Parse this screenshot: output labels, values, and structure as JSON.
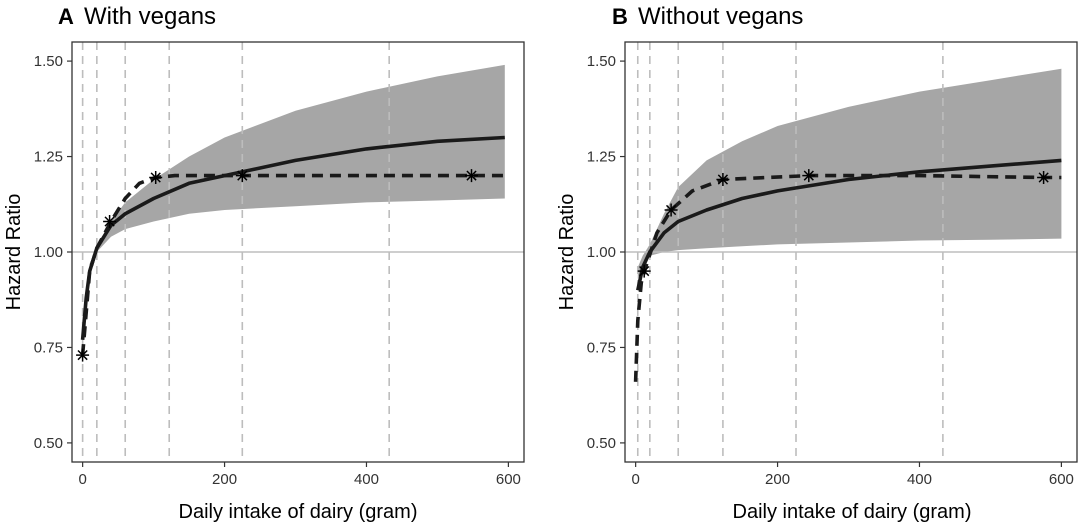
{
  "chart_data": [
    {
      "type": "line",
      "panel_letter": "A",
      "title": "With vegans",
      "xlabel": "Daily intake of dairy (gram)",
      "ylabel": "Hazard Ratio",
      "xlim": [
        -15,
        622
      ],
      "ylim": [
        0.45,
        1.55
      ],
      "xticks": [
        0,
        200,
        400,
        600
      ],
      "xtick_labels": [
        "0",
        "200",
        "400",
        "600"
      ],
      "yticks": [
        0.5,
        0.75,
        1.0,
        1.25,
        1.5
      ],
      "ytick_labels": [
        "0.50",
        "0.75",
        "1.00",
        "1.25",
        "1.50"
      ],
      "reference_line_y": 1.0,
      "quantile_lines_x": [
        0,
        20,
        60,
        122,
        225,
        432
      ],
      "band": {
        "x": [
          0,
          10,
          20,
          40,
          60,
          100,
          150,
          200,
          300,
          400,
          500,
          595
        ],
        "lower": [
          0.78,
          0.95,
          1.0,
          1.04,
          1.06,
          1.08,
          1.1,
          1.11,
          1.12,
          1.13,
          1.135,
          1.14
        ],
        "upper": [
          0.78,
          0.97,
          1.01,
          1.08,
          1.13,
          1.19,
          1.25,
          1.3,
          1.37,
          1.42,
          1.46,
          1.49
        ]
      },
      "series": [
        {
          "style": "solid",
          "x": [
            0,
            5,
            10,
            20,
            40,
            60,
            100,
            150,
            200,
            300,
            400,
            500,
            595
          ],
          "y": [
            0.77,
            0.88,
            0.95,
            1.01,
            1.07,
            1.1,
            1.14,
            1.18,
            1.2,
            1.24,
            1.27,
            1.29,
            1.3
          ]
        },
        {
          "style": "dashed",
          "x": [
            0,
            10,
            20,
            40,
            60,
            80,
            103,
            130,
            225,
            400,
            548,
            595
          ],
          "y": [
            0.73,
            0.95,
            1.01,
            1.08,
            1.14,
            1.18,
            1.195,
            1.2,
            1.2,
            1.2,
            1.2,
            1.2
          ]
        }
      ],
      "markers": {
        "x": [
          0,
          38,
          103,
          225,
          548
        ],
        "y": [
          0.73,
          1.08,
          1.195,
          1.2,
          1.2
        ]
      }
    },
    {
      "type": "line",
      "panel_letter": "B",
      "title": "Without vegans",
      "xlabel": "Daily intake of dairy (gram)",
      "ylabel": "Hazard Ratio",
      "xlim": [
        -15,
        622
      ],
      "ylim": [
        0.45,
        1.55
      ],
      "xticks": [
        0,
        200,
        400,
        600
      ],
      "xtick_labels": [
        "0",
        "200",
        "400",
        "600"
      ],
      "yticks": [
        0.5,
        0.75,
        1.0,
        1.25,
        1.5
      ],
      "ytick_labels": [
        "0.50",
        "0.75",
        "1.00",
        "1.25",
        "1.50"
      ],
      "reference_line_y": 1.0,
      "quantile_lines_x": [
        3,
        20,
        60,
        123,
        226,
        433
      ],
      "band": {
        "x": [
          3,
          10,
          20,
          40,
          60,
          100,
          150,
          200,
          300,
          400,
          500,
          600
        ],
        "lower": [
          0.93,
          0.96,
          0.99,
          1.0,
          1.005,
          1.01,
          1.015,
          1.02,
          1.025,
          1.03,
          1.032,
          1.035
        ],
        "upper": [
          0.96,
          0.99,
          1.02,
          1.1,
          1.17,
          1.24,
          1.29,
          1.33,
          1.38,
          1.42,
          1.45,
          1.48
        ]
      },
      "series": [
        {
          "style": "solid",
          "x": [
            3,
            10,
            20,
            40,
            60,
            100,
            150,
            200,
            300,
            400,
            500,
            600
          ],
          "y": [
            0.9,
            0.96,
            1.0,
            1.05,
            1.08,
            1.11,
            1.14,
            1.16,
            1.19,
            1.21,
            1.225,
            1.24
          ]
        },
        {
          "style": "dashed",
          "x": [
            0,
            3,
            8,
            14,
            30,
            50,
            80,
            123,
            244,
            400,
            575,
            600
          ],
          "y": [
            0.66,
            0.82,
            0.92,
            0.96,
            1.05,
            1.11,
            1.16,
            1.19,
            1.2,
            1.2,
            1.195,
            1.195
          ]
        }
      ],
      "markers": {
        "x": [
          12,
          50,
          123,
          244,
          575
        ],
        "y": [
          0.95,
          1.11,
          1.19,
          1.2,
          1.195
        ]
      }
    }
  ]
}
